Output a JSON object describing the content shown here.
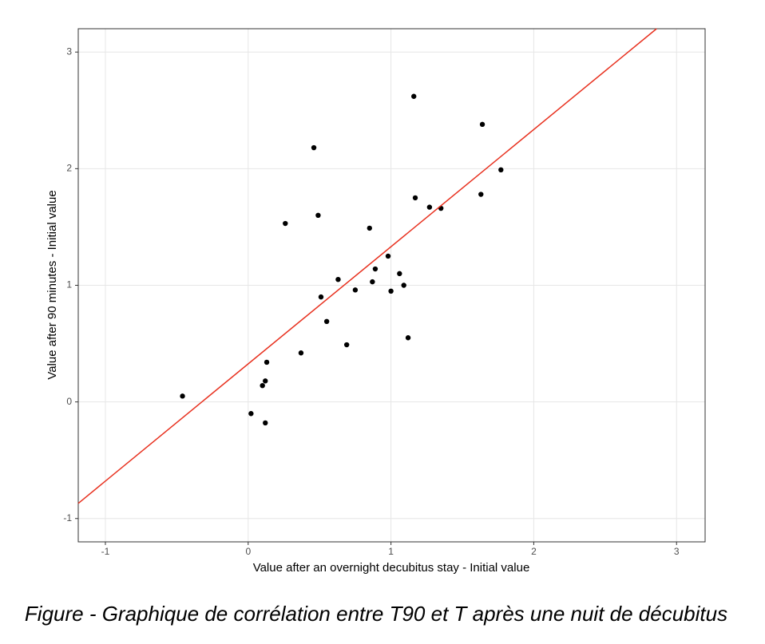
{
  "chart_data": {
    "type": "scatter",
    "x_label": "Value after an overnight decubitus stay - Initial value",
    "y_label": "Value after 90 minutes - Initial value",
    "caption": "Figure  - Graphique de corrélation entre T90 et T après une nuit de décubitus",
    "xlim": [
      -1.19,
      3.2
    ],
    "ylim": [
      -1.2,
      3.2
    ],
    "xticks": [
      -1,
      0,
      1,
      2,
      3
    ],
    "yticks": [
      -1,
      0,
      1,
      2,
      3
    ],
    "grid": true,
    "color": "#000000",
    "x": [
      -0.46,
      0.02,
      0.12,
      0.1,
      0.12,
      0.13,
      0.26,
      0.37,
      0.46,
      0.49,
      0.51,
      0.55,
      0.63,
      0.69,
      0.75,
      0.85,
      0.87,
      0.89,
      0.98,
      1.0,
      1.06,
      1.09,
      1.12,
      1.16,
      1.17,
      1.27,
      1.35,
      1.63,
      1.64,
      1.77
    ],
    "values": [
      0.05,
      -0.1,
      -0.18,
      0.14,
      0.18,
      0.34,
      1.53,
      0.42,
      2.18,
      1.6,
      0.9,
      0.69,
      1.05,
      0.49,
      0.96,
      1.49,
      1.03,
      1.14,
      1.25,
      0.95,
      1.1,
      1.0,
      0.55,
      2.62,
      1.75,
      1.67,
      1.66,
      1.78,
      2.38,
      1.99
    ],
    "fit_line": {
      "color": "#e8311f",
      "x": [
        -1.19,
        2.86
      ],
      "values": [
        -0.87,
        3.2
      ]
    }
  }
}
